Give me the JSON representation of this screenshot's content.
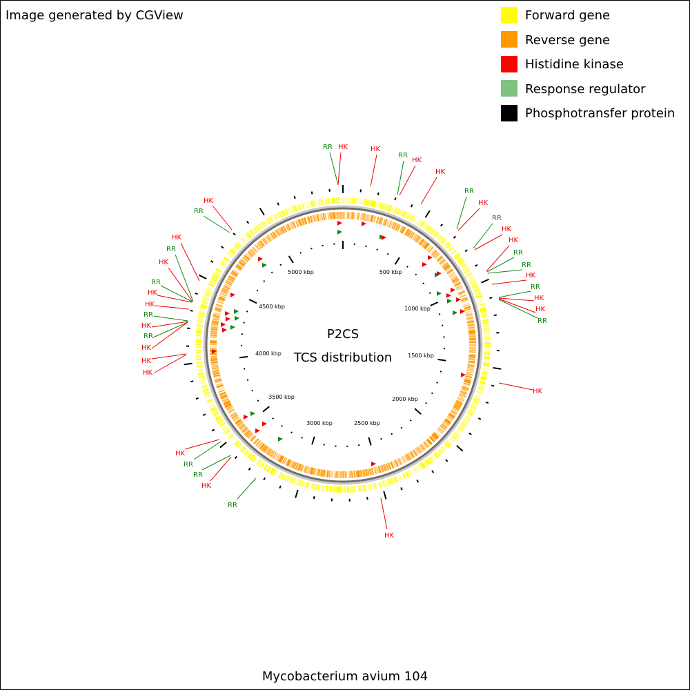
{
  "header": {
    "credit": "Image generated by CGView"
  },
  "legend": {
    "items": [
      "Forward gene",
      "Reverse gene",
      "Histidine kinase",
      "Response regulator",
      "Phosphotransfer protein"
    ]
  },
  "center": {
    "title": "P2CS",
    "subtitle": "TCS distribution"
  },
  "scale": {
    "labels": [
      "500 kbp",
      "1000 kbp",
      "1500 kbp",
      "2000 kbp",
      "2500 kbp",
      "3000 kbp",
      "3500 kbp",
      "4000 kbp",
      "4500 kbp",
      "5000 kbp"
    ]
  },
  "features": {
    "labels": [
      "RR",
      "HK",
      "HK",
      "RR",
      "HK",
      "HK",
      "RR",
      "HK",
      "RR",
      "HK",
      "HK",
      "RR",
      "RR",
      "HK",
      "RR",
      "HK",
      "HK",
      "RR",
      "HK",
      "HK",
      "RR",
      "HK",
      "RR",
      "RR",
      "HK",
      "HK",
      "RR",
      "HK",
      "RR",
      "HK",
      "RR",
      "HK",
      "HK",
      "RR",
      "HK",
      "RR",
      "HK",
      "HK",
      "HK"
    ]
  },
  "footer": {
    "title": "Mycobacterium avium 104"
  }
}
